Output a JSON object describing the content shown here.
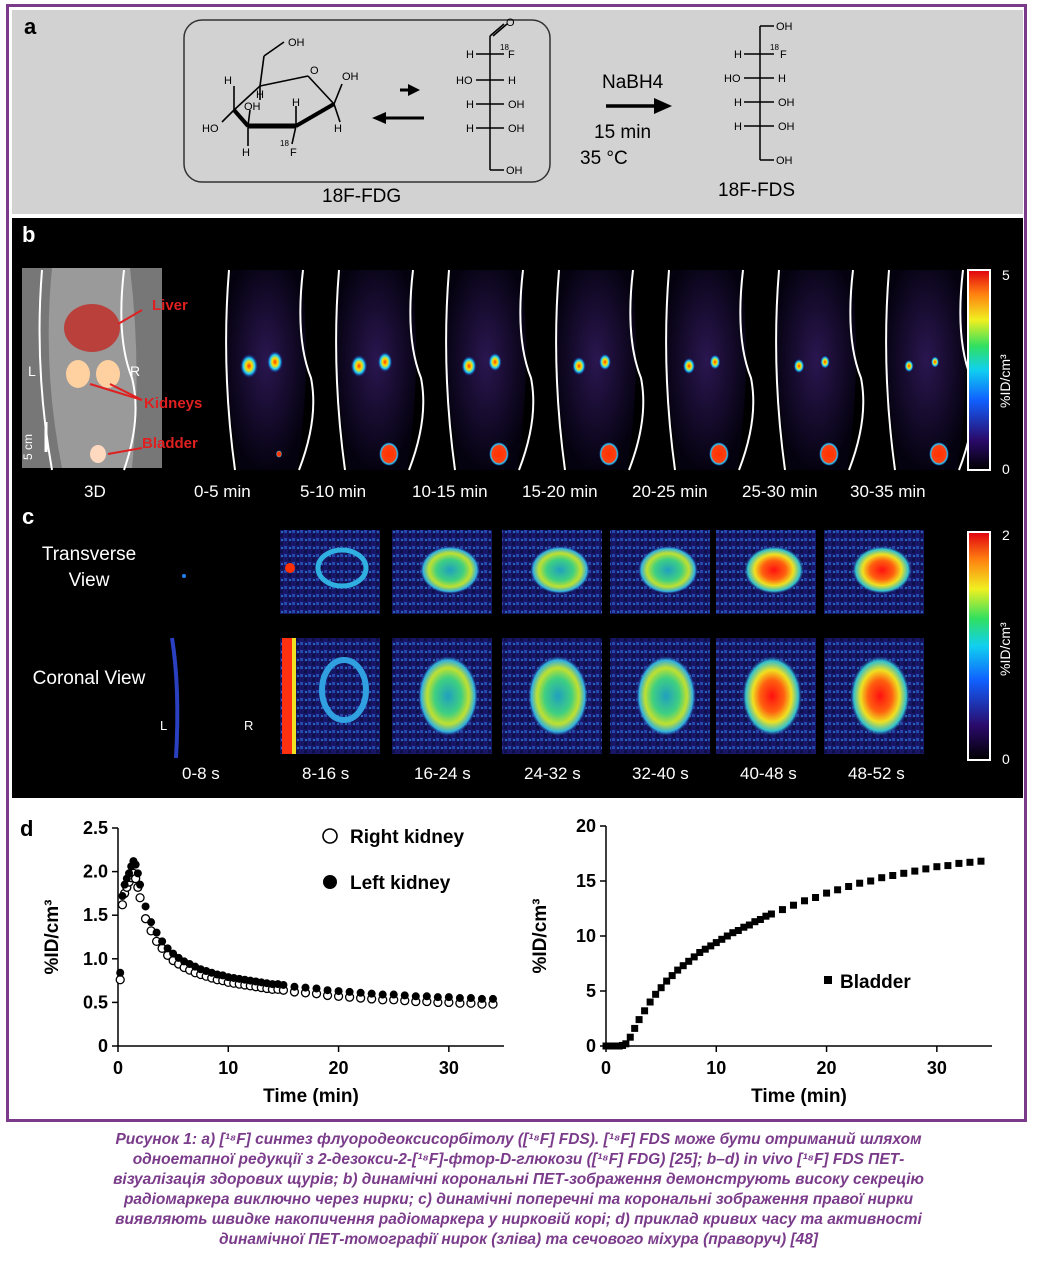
{
  "panel_letters": {
    "a": "a",
    "b": "b",
    "c": "c",
    "d": "d"
  },
  "panel_a": {
    "fdg_label": "18F-FDG",
    "fds_label": "18F-FDS",
    "reagent": "NaBH4",
    "time": "15 min",
    "temperature": "35 °C",
    "atom_OH": "OH",
    "atom_HO": "HO",
    "atom_H": "H",
    "atom_O": "O",
    "atom_F": "F",
    "superscript_18": "18"
  },
  "panel_b": {
    "annotations": {
      "liver": "Liver",
      "kidneys": "Kidneys",
      "bladder": "Bladder",
      "left": "L",
      "right": "R",
      "scale": "5 cm"
    },
    "frames": [
      "3D",
      "0-5 min",
      "5-10 min",
      "10-15 min",
      "15-20 min",
      "20-25 min",
      "25-30 min",
      "30-35 min"
    ],
    "colorbar": {
      "max": "5",
      "min": "0",
      "label": "%ID/cm³"
    }
  },
  "panel_c": {
    "row_labels": {
      "transverse": "Transverse View",
      "coronal": "Coronal View"
    },
    "lr": {
      "left": "L",
      "right": "R"
    },
    "frames": [
      "0-8 s",
      "8-16 s",
      "16-24 s",
      "24-32 s",
      "32-40 s",
      "40-48 s",
      "48-52 s"
    ],
    "colorbar": {
      "max": "2",
      "min": "0",
      "label": "%ID/cm³"
    }
  },
  "chart_data": [
    {
      "type": "scatter",
      "xlabel": "Time (min)",
      "ylabel": "%ID/cm³",
      "xlim": [
        0,
        35
      ],
      "ylim": [
        0,
        2.5
      ],
      "xticks": [
        "0",
        "10",
        "20",
        "30"
      ],
      "yticks": [
        "0",
        "0.5",
        "1.0",
        "1.5",
        "2.0",
        "2.5"
      ],
      "legend_position": "top-right",
      "series": [
        {
          "name": "Right kidney",
          "marker": "open-circle",
          "x": [
            0.2,
            0.4,
            0.6,
            0.8,
            1.0,
            1.2,
            1.4,
            1.6,
            1.8,
            2.0,
            2.5,
            3,
            3.5,
            4,
            4.5,
            5,
            5.5,
            6,
            6.5,
            7,
            7.5,
            8,
            8.5,
            9,
            9.5,
            10,
            10.5,
            11,
            11.5,
            12,
            12.5,
            13,
            13.5,
            14,
            14.5,
            15,
            16,
            17,
            18,
            19,
            20,
            21,
            22,
            23,
            24,
            25,
            26,
            27,
            28,
            29,
            30,
            31,
            32,
            33,
            34
          ],
          "y": [
            0.76,
            1.62,
            1.75,
            1.82,
            1.88,
            1.93,
            1.98,
            1.92,
            1.82,
            1.7,
            1.46,
            1.32,
            1.2,
            1.12,
            1.04,
            0.98,
            0.94,
            0.9,
            0.87,
            0.84,
            0.82,
            0.8,
            0.78,
            0.76,
            0.75,
            0.73,
            0.72,
            0.71,
            0.7,
            0.69,
            0.68,
            0.67,
            0.66,
            0.65,
            0.65,
            0.64,
            0.62,
            0.61,
            0.6,
            0.58,
            0.57,
            0.56,
            0.55,
            0.54,
            0.53,
            0.53,
            0.52,
            0.51,
            0.51,
            0.5,
            0.5,
            0.49,
            0.49,
            0.48,
            0.48
          ]
        },
        {
          "name": "Left kidney",
          "marker": "filled-circle",
          "x": [
            0.2,
            0.4,
            0.6,
            0.8,
            1.0,
            1.2,
            1.4,
            1.6,
            1.8,
            2.0,
            2.5,
            3,
            3.5,
            4,
            4.5,
            5,
            5.5,
            6,
            6.5,
            7,
            7.5,
            8,
            8.5,
            9,
            9.5,
            10,
            10.5,
            11,
            11.5,
            12,
            12.5,
            13,
            13.5,
            14,
            14.5,
            15,
            16,
            17,
            18,
            19,
            20,
            21,
            22,
            23,
            24,
            25,
            26,
            27,
            28,
            29,
            30,
            31,
            32,
            33,
            34
          ],
          "y": [
            0.84,
            1.72,
            1.85,
            1.92,
            1.98,
            2.06,
            2.12,
            2.08,
            1.98,
            1.85,
            1.6,
            1.42,
            1.3,
            1.2,
            1.12,
            1.06,
            1.01,
            0.97,
            0.94,
            0.91,
            0.88,
            0.86,
            0.84,
            0.82,
            0.81,
            0.79,
            0.78,
            0.77,
            0.76,
            0.75,
            0.74,
            0.73,
            0.72,
            0.71,
            0.71,
            0.7,
            0.68,
            0.67,
            0.66,
            0.64,
            0.63,
            0.62,
            0.61,
            0.6,
            0.59,
            0.59,
            0.58,
            0.57,
            0.57,
            0.56,
            0.56,
            0.55,
            0.55,
            0.54,
            0.54
          ]
        }
      ]
    },
    {
      "type": "scatter",
      "xlabel": "Time (min)",
      "ylabel": "%ID/cm³",
      "xlim": [
        0,
        35
      ],
      "ylim": [
        0,
        20
      ],
      "xticks": [
        "0",
        "10",
        "20",
        "30"
      ],
      "yticks": [
        "0",
        "5",
        "10",
        "15",
        "20"
      ],
      "legend_position": "bottom-right",
      "series": [
        {
          "name": "Bladder",
          "marker": "filled-square",
          "x": [
            0,
            0.3,
            0.6,
            0.9,
            1.2,
            1.5,
            1.8,
            2.2,
            2.6,
            3,
            3.5,
            4,
            4.5,
            5,
            5.5,
            6,
            6.5,
            7,
            7.5,
            8,
            8.5,
            9,
            9.5,
            10,
            10.5,
            11,
            11.5,
            12,
            12.5,
            13,
            13.5,
            14,
            14.5,
            15,
            16,
            17,
            18,
            19,
            20,
            21,
            22,
            23,
            24,
            25,
            26,
            27,
            28,
            29,
            30,
            31,
            32,
            33,
            34
          ],
          "y": [
            0,
            0,
            0,
            0,
            0,
            0.05,
            0.2,
            0.8,
            1.6,
            2.4,
            3.2,
            4.0,
            4.7,
            5.3,
            5.9,
            6.4,
            6.9,
            7.3,
            7.7,
            8.1,
            8.5,
            8.8,
            9.1,
            9.4,
            9.7,
            10.0,
            10.3,
            10.5,
            10.8,
            11.0,
            11.3,
            11.5,
            11.8,
            12.0,
            12.4,
            12.8,
            13.2,
            13.5,
            13.9,
            14.2,
            14.5,
            14.8,
            15.0,
            15.3,
            15.5,
            15.7,
            15.9,
            16.1,
            16.3,
            16.4,
            16.6,
            16.7,
            16.8
          ]
        }
      ]
    }
  ],
  "caption": {
    "line1": "Рисунок 1: a) [¹⁸F] синтез флуородеоксисорбітолу ([¹⁸F] FDS). [¹⁸F] FDS може бути отриманий шляхом",
    "line2": "одноетапної редукції з 2-дезокси-2-[¹⁸F]-фтор-D-глюкози ([¹⁸F] FDG) [25]; b–d) in vivo [¹⁸F] FDS ПЕТ-",
    "line3": "візуалізація здорових щурів; b) динамічні корональні ПЕТ-зображення демонструють високу секрецію",
    "line4": "радіомаркера виключно через нирки; c) динамічні поперечні та корональні зображення правої нирки",
    "line5": "виявляють швидке накопичення радіомаркера у нирковій корі; d) приклад кривих часу та активності",
    "line6": "динамічної ПЕТ-томографії нирок (зліва) та сечового міхура (праворуч) [48]"
  },
  "colors": {
    "frame": "#7a3b8a",
    "caption": "#7a3b8a",
    "panel_a_bg": "#d2d2d2",
    "annotation_red": "#e02020"
  }
}
